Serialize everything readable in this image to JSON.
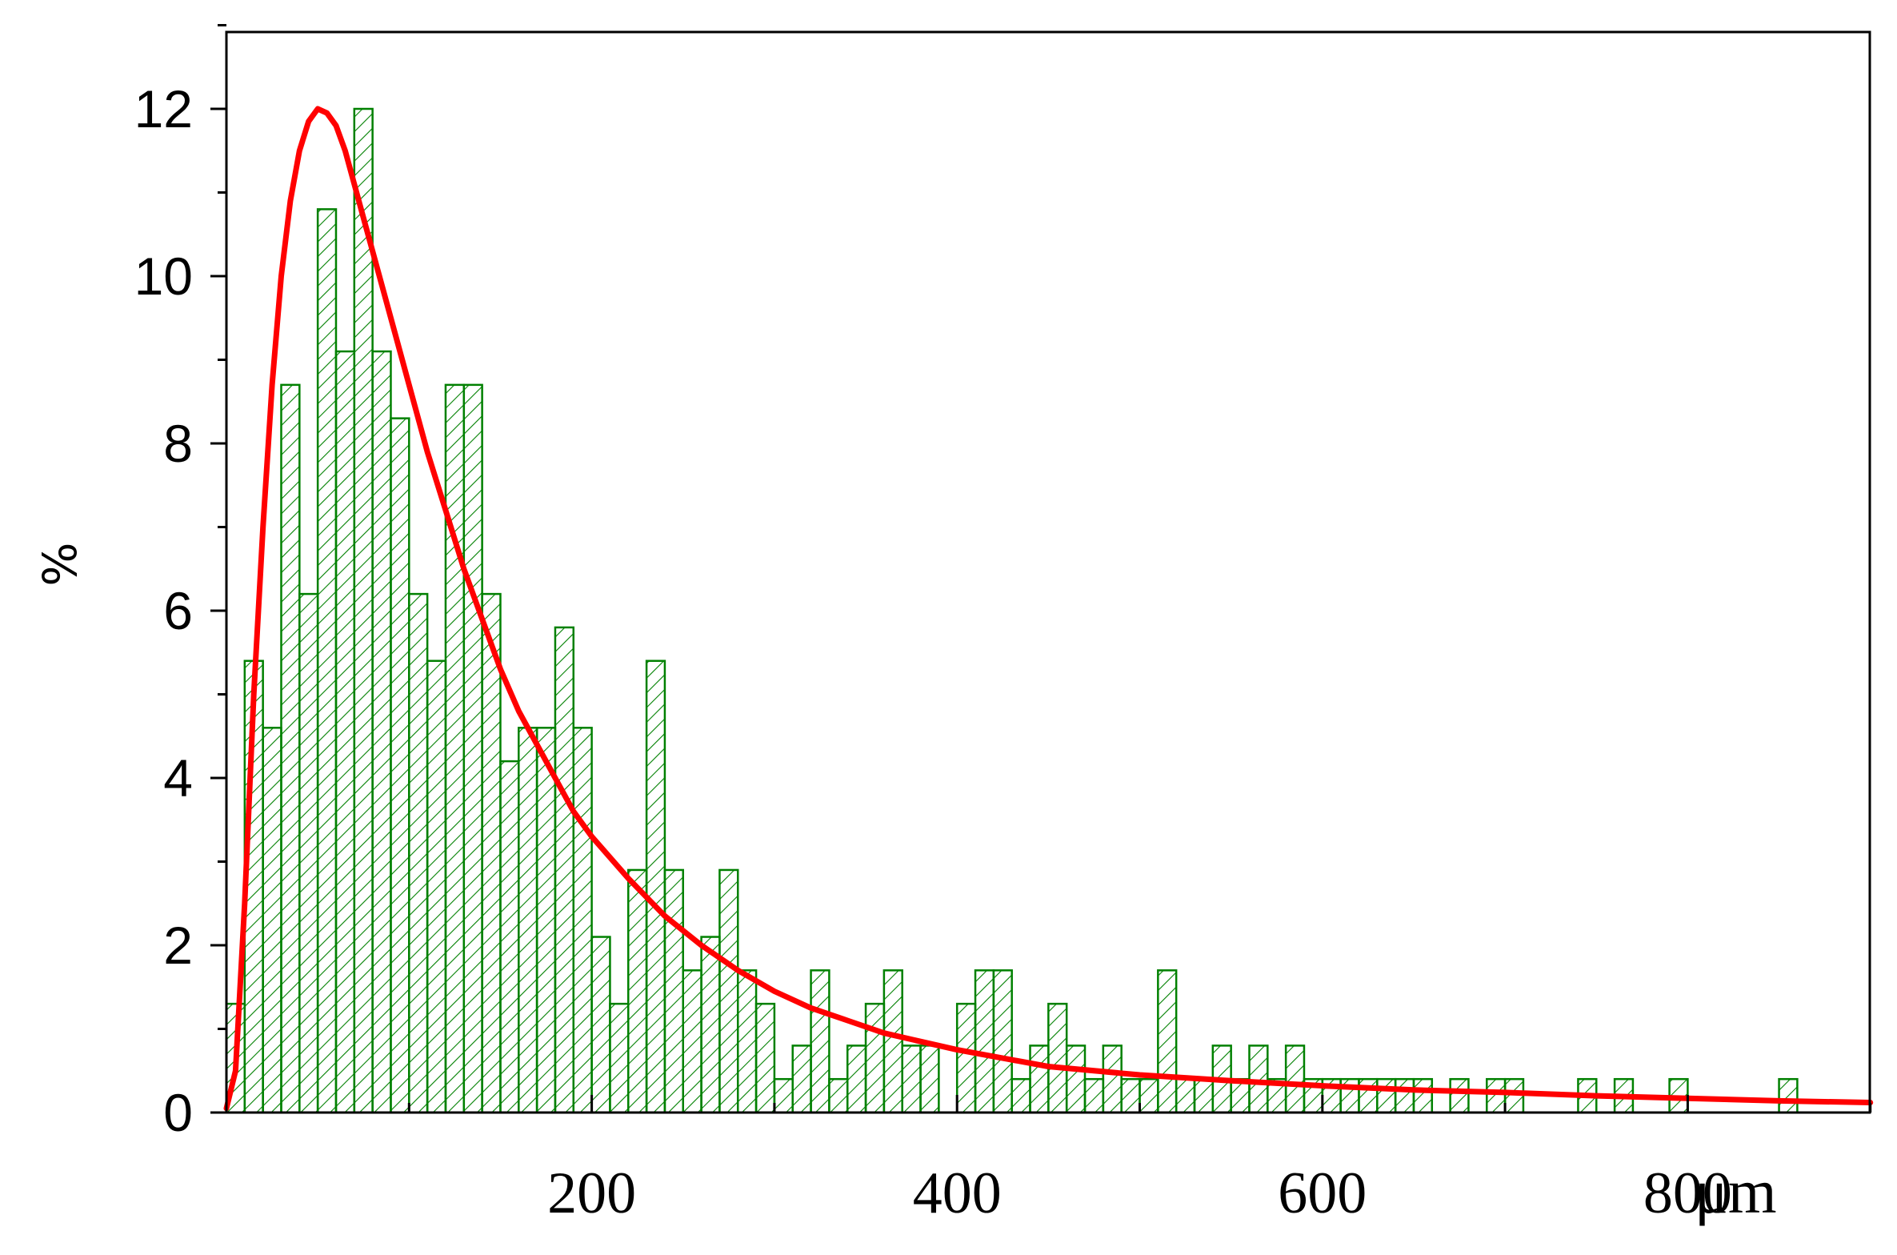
{
  "chart_data": {
    "type": "bar",
    "title": "",
    "xlabel": "",
    "x_unit_label": "μm",
    "ylabel": "%",
    "xlim": [
      0,
      900
    ],
    "ylim": [
      0,
      13
    ],
    "xticks": [
      200,
      400,
      600,
      800
    ],
    "yticks": [
      0,
      2,
      4,
      6,
      8,
      10,
      12
    ],
    "grid": false,
    "legend": "none",
    "bin_width": 10,
    "bar_color": "#008000",
    "bar_fill": "hatched",
    "series": [
      {
        "type": "bar",
        "bin_starts": [
          0,
          10,
          20,
          30,
          40,
          50,
          60,
          70,
          80,
          90,
          100,
          110,
          120,
          130,
          140,
          150,
          160,
          170,
          180,
          190,
          200,
          210,
          220,
          230,
          240,
          250,
          260,
          270,
          280,
          290,
          300,
          310,
          320,
          330,
          340,
          350,
          360,
          370,
          380,
          400,
          410,
          420,
          430,
          440,
          450,
          460,
          470,
          480,
          490,
          500,
          510,
          520,
          530,
          540,
          550,
          560,
          570,
          580,
          590,
          600,
          610,
          620,
          630,
          640,
          650,
          670,
          690,
          700,
          740,
          760,
          790,
          850
        ],
        "values": [
          1.3,
          5.4,
          4.6,
          8.7,
          6.2,
          10.8,
          9.1,
          12.0,
          9.1,
          8.3,
          6.2,
          5.4,
          8.7,
          8.7,
          6.2,
          4.2,
          4.6,
          4.6,
          5.8,
          4.6,
          2.1,
          1.3,
          2.9,
          5.4,
          2.9,
          1.7,
          2.1,
          2.9,
          1.7,
          1.3,
          0.4,
          0.8,
          1.7,
          0.4,
          0.8,
          1.3,
          1.7,
          0.8,
          0.8,
          1.3,
          1.7,
          1.7,
          0.4,
          0.8,
          1.3,
          0.8,
          0.4,
          0.8,
          0.4,
          0.4,
          1.7,
          0.4,
          0.4,
          0.8,
          0.4,
          0.8,
          0.4,
          0.8,
          0.4,
          0.4,
          0.4,
          0.4,
          0.4,
          0.4,
          0.4,
          0.4,
          0.4,
          0.4,
          0.4,
          0.4,
          0.4,
          0.4
        ]
      },
      {
        "type": "line",
        "color": "#ff0000",
        "x": [
          0,
          5,
          10,
          15,
          20,
          25,
          30,
          35,
          40,
          45,
          50,
          55,
          60,
          65,
          70,
          75,
          80,
          90,
          100,
          110,
          120,
          130,
          140,
          150,
          160,
          170,
          180,
          190,
          200,
          220,
          240,
          260,
          280,
          300,
          320,
          340,
          360,
          380,
          400,
          450,
          500,
          550,
          600,
          650,
          700,
          750,
          800,
          850,
          900
        ],
        "values": [
          0.05,
          0.5,
          2.5,
          5.0,
          7.0,
          8.7,
          10.0,
          10.9,
          11.5,
          11.85,
          12.0,
          11.95,
          11.8,
          11.5,
          11.1,
          10.7,
          10.3,
          9.5,
          8.7,
          7.9,
          7.2,
          6.5,
          5.9,
          5.3,
          4.8,
          4.4,
          4.0,
          3.6,
          3.3,
          2.8,
          2.35,
          2.0,
          1.7,
          1.45,
          1.25,
          1.1,
          0.95,
          0.85,
          0.75,
          0.55,
          0.45,
          0.38,
          0.32,
          0.27,
          0.24,
          0.2,
          0.17,
          0.14,
          0.12
        ]
      }
    ]
  }
}
